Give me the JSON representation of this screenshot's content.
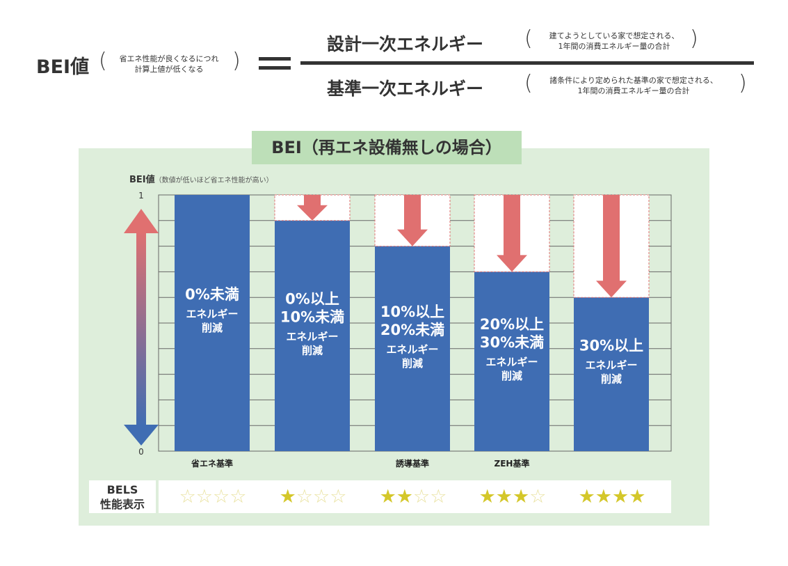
{
  "formula": {
    "lhs": "BEI値",
    "lhs_note_1": "省エネ性能が良くなるにつれ",
    "lhs_note_2": "計算上値が低くなる",
    "numerator": "設計一次エネルギー",
    "numerator_note_1": "建てようとしている家で想定される、",
    "numerator_note_2": "1年間の消費エネルギー量の合計",
    "denominator": "基準一次エネルギー",
    "denominator_note_1": "諸条件により定められた基準の家で想定される、",
    "denominator_note_2": "1年間の消費エネルギー量の合計"
  },
  "chart_data": {
    "type": "bar",
    "title": "BEI（再エネ設備無しの場合）",
    "ylabel": "BEI値",
    "ylabel_note": "（数値が低いほど省エネ性能が高い）",
    "ylim": [
      0,
      1
    ],
    "yticks": [
      "0",
      "1"
    ],
    "grid": true,
    "categories": [
      "省エネ基準",
      "",
      "誘導基準",
      "ZEH基準",
      ""
    ],
    "values": [
      1.0,
      0.9,
      0.8,
      0.7,
      0.6
    ],
    "bar_labels": [
      [
        "0%未満",
        "エネルギー",
        "削減"
      ],
      [
        "0%以上",
        "10%未満",
        "エネルギー",
        "削減"
      ],
      [
        "10%以上",
        "20%未満",
        "エネルギー",
        "削減"
      ],
      [
        "20%以上",
        "30%未満",
        "エネルギー",
        "削減"
      ],
      [
        "30%以上",
        "エネルギー",
        "削減"
      ]
    ],
    "colors": {
      "bar": "#3f6db3",
      "reduction_arrow": "#e07070",
      "panel": "#deeedb",
      "title_bg": "#bddfb8",
      "star_on": "#d4c72a",
      "star_off": "#e9e2a0"
    }
  },
  "bels": {
    "label_1": "BELS",
    "label_2": "性能表示",
    "stars": [
      0,
      1,
      2,
      3,
      4
    ],
    "max_stars": 4
  }
}
